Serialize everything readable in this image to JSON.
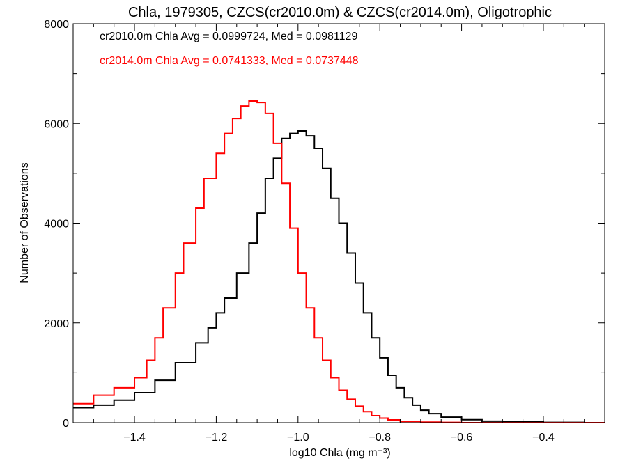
{
  "chart_data": {
    "type": "line",
    "title": "Chla, 1979305, CZCS(cr2010.0m) & CZCS(cr2014.0m), Oligotrophic",
    "xlabel": "log10 Chla (mg m⁻³)",
    "ylabel": "Number of Observations",
    "xlim": [
      -1.55,
      -0.25
    ],
    "ylim": [
      0,
      8000
    ],
    "x_ticks": [
      -1.4,
      -1.2,
      -1.0,
      -0.8,
      -0.6,
      -0.4
    ],
    "x_tick_labels": [
      "−1.4",
      "−1.2",
      "−1.0",
      "−0.8",
      "−0.6",
      "−0.4"
    ],
    "y_ticks": [
      0,
      2000,
      4000,
      6000,
      8000
    ],
    "y_tick_labels": [
      "0",
      "2000",
      "4000",
      "6000",
      "8000"
    ],
    "grid": false,
    "annotations": [
      {
        "text": "cr2010.0m Chla Avg = 0.0999724, Med = 0.0981129",
        "color": "#000000"
      },
      {
        "text": "cr2014.0m Chla Avg = 0.0741333, Med = 0.0737448",
        "color": "#ff0000"
      }
    ],
    "series": [
      {
        "color": "#000000",
        "style": "step",
        "x": [
          -1.55,
          -1.5,
          -1.45,
          -1.4,
          -1.35,
          -1.3,
          -1.25,
          -1.22,
          -1.2,
          -1.18,
          -1.15,
          -1.12,
          -1.1,
          -1.08,
          -1.06,
          -1.04,
          -1.02,
          -1.0,
          -0.98,
          -0.96,
          -0.94,
          -0.92,
          -0.9,
          -0.88,
          -0.86,
          -0.84,
          -0.82,
          -0.8,
          -0.78,
          -0.76,
          -0.74,
          -0.72,
          -0.7,
          -0.68,
          -0.65,
          -0.6,
          -0.55,
          -0.5,
          -0.4,
          -0.3,
          -0.25
        ],
        "y": [
          300,
          350,
          450,
          600,
          850,
          1200,
          1600,
          1900,
          2200,
          2500,
          3000,
          3600,
          4200,
          4900,
          5300,
          5700,
          5800,
          5850,
          5750,
          5500,
          5100,
          4500,
          4000,
          3400,
          2800,
          2200,
          1700,
          1300,
          950,
          700,
          500,
          350,
          250,
          180,
          110,
          60,
          30,
          15,
          5,
          0,
          0
        ]
      },
      {
        "color": "#ff0000",
        "style": "step",
        "x": [
          -1.55,
          -1.5,
          -1.45,
          -1.4,
          -1.37,
          -1.35,
          -1.33,
          -1.3,
          -1.28,
          -1.25,
          -1.23,
          -1.2,
          -1.18,
          -1.16,
          -1.14,
          -1.12,
          -1.1,
          -1.08,
          -1.06,
          -1.04,
          -1.02,
          -1.0,
          -0.98,
          -0.96,
          -0.94,
          -0.92,
          -0.9,
          -0.88,
          -0.86,
          -0.84,
          -0.82,
          -0.8,
          -0.78,
          -0.75,
          -0.7,
          -0.65,
          -0.6,
          -0.5,
          -0.4,
          -0.25
        ],
        "y": [
          380,
          550,
          700,
          900,
          1250,
          1700,
          2300,
          3000,
          3600,
          4300,
          4900,
          5400,
          5800,
          6100,
          6350,
          6450,
          6420,
          6200,
          5600,
          4800,
          3900,
          3000,
          2300,
          1700,
          1250,
          900,
          650,
          470,
          330,
          220,
          140,
          90,
          55,
          25,
          10,
          5,
          0,
          0,
          0,
          0
        ]
      }
    ]
  }
}
